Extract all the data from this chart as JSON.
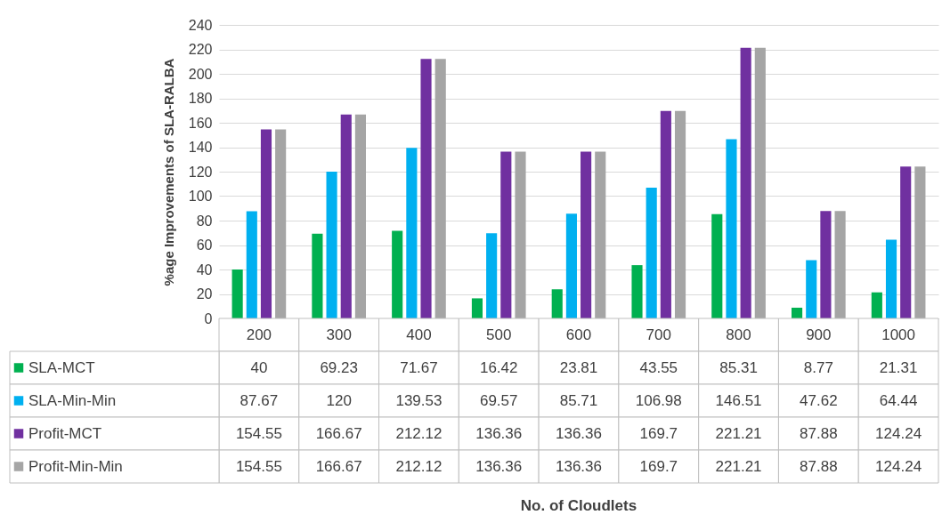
{
  "chart_data": {
    "type": "bar",
    "annotations": [
      "No. of Cloudlets"
    ],
    "ylabel": "%age Improvements of SLA-RALBA",
    "categories": [
      "200",
      "300",
      "400",
      "500",
      "600",
      "700",
      "800",
      "900",
      "1000"
    ],
    "series": [
      {
        "name": "SLA-MCT",
        "color": "#00b050",
        "values": [
          40,
          69.23,
          71.67,
          16.42,
          23.81,
          43.55,
          85.31,
          8.77,
          21.31
        ]
      },
      {
        "name": "SLA-Min-Min",
        "color": "#00b0f0",
        "values": [
          87.67,
          120,
          139.53,
          69.57,
          85.71,
          106.98,
          146.51,
          47.62,
          64.44
        ]
      },
      {
        "name": "Profit-MCT",
        "color": "#7030a0",
        "values": [
          154.55,
          166.67,
          212.12,
          136.36,
          136.36,
          169.7,
          221.21,
          87.88,
          124.24
        ]
      },
      {
        "name": "Profit-Min-Min",
        "color": "#a5a5a5",
        "values": [
          154.55,
          166.67,
          212.12,
          136.36,
          136.36,
          169.7,
          221.21,
          87.88,
          124.24
        ]
      }
    ],
    "ylim": [
      0,
      240
    ],
    "yticks": [
      0,
      20,
      40,
      60,
      80,
      100,
      120,
      140,
      160,
      180,
      200,
      220,
      240
    ],
    "grid": "y",
    "legend": "bottom",
    "data_labels": true
  }
}
